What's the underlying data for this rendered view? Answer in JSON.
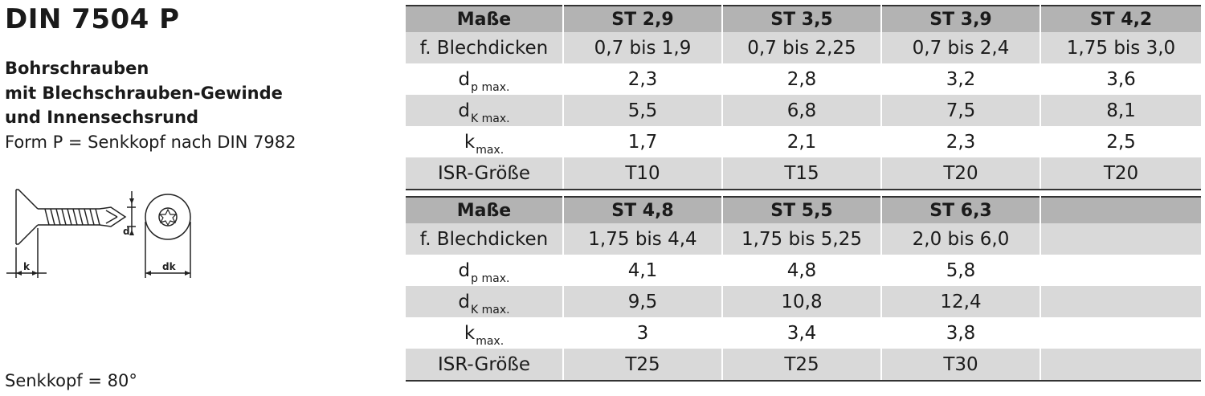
{
  "title": "DIN 7504 P",
  "description": {
    "line1": "Bohrschrauben",
    "line2": "mit Blechschrauben-Gewinde",
    "line3": "und Innensechsrund",
    "line4": "Form P = Senkkopf nach DIN 7982"
  },
  "drawing": {
    "label_k": "k",
    "label_dk": "dk",
    "label_d": "d"
  },
  "countersink_note": "Senkkopf = 80°",
  "tables": [
    {
      "header": [
        "Maße",
        "ST 2,9",
        "ST 3,5",
        "ST 3,9",
        "ST 4,2"
      ],
      "rows": [
        {
          "label": "f. Blechdicken",
          "sub": "",
          "values": [
            "0,7 bis 1,9",
            "0,7 bis 2,25",
            "0,7 bis 2,4",
            "1,75 bis 3,0"
          ]
        },
        {
          "label": "d",
          "sub": "p max.",
          "values": [
            "2,3",
            "2,8",
            "3,2",
            "3,6"
          ]
        },
        {
          "label": "d",
          "sub": "K max.",
          "values": [
            "5,5",
            "6,8",
            "7,5",
            "8,1"
          ]
        },
        {
          "label": "k",
          "sub": "max.",
          "values": [
            "1,7",
            "2,1",
            "2,3",
            "2,5"
          ]
        },
        {
          "label": "ISR-Größe",
          "sub": "",
          "values": [
            "T10",
            "T15",
            "T20",
            "T20"
          ]
        }
      ]
    },
    {
      "header": [
        "Maße",
        "ST 4,8",
        "ST 5,5",
        "ST 6,3",
        ""
      ],
      "rows": [
        {
          "label": "f. Blechdicken",
          "sub": "",
          "values": [
            "1,75 bis 4,4",
            "1,75 bis 5,25",
            "2,0 bis 6,0",
            ""
          ]
        },
        {
          "label": "d",
          "sub": "p max.",
          "values": [
            "4,1",
            "4,8",
            "5,8",
            ""
          ]
        },
        {
          "label": "d",
          "sub": "K max.",
          "values": [
            "9,5",
            "10,8",
            "12,4",
            ""
          ]
        },
        {
          "label": "k",
          "sub": "max.",
          "values": [
            "3",
            "3,4",
            "3,8",
            ""
          ]
        },
        {
          "label": "ISR-Größe",
          "sub": "",
          "values": [
            "T25",
            "T25",
            "T30",
            ""
          ]
        }
      ]
    }
  ]
}
